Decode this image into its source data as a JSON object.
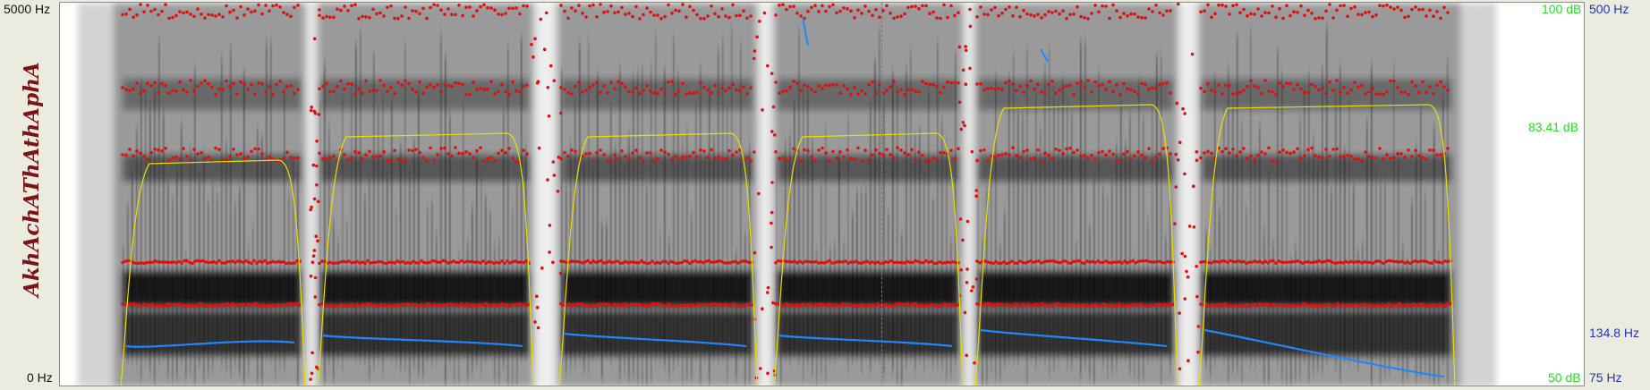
{
  "app": "Praat sound editor",
  "left_axis": {
    "top_label": "5000 Hz",
    "bottom_label": "0 Hz"
  },
  "intensity_axis": {
    "top_label": "100 dB",
    "mid_label": "83.41 dB",
    "bottom_label": "50 dB",
    "color": "#22dd22"
  },
  "pitch_axis": {
    "top_label": "500 Hz",
    "mid_label": "134.8 Hz",
    "bottom_label": "75 Hz",
    "color": "#2233bb"
  },
  "word_label": "AkhAchAThAthAphA",
  "colors": {
    "formant": "#dd1111",
    "pitch": "#1e88ff",
    "intensity": "#e8e000",
    "spectrogram": "#333333"
  }
}
